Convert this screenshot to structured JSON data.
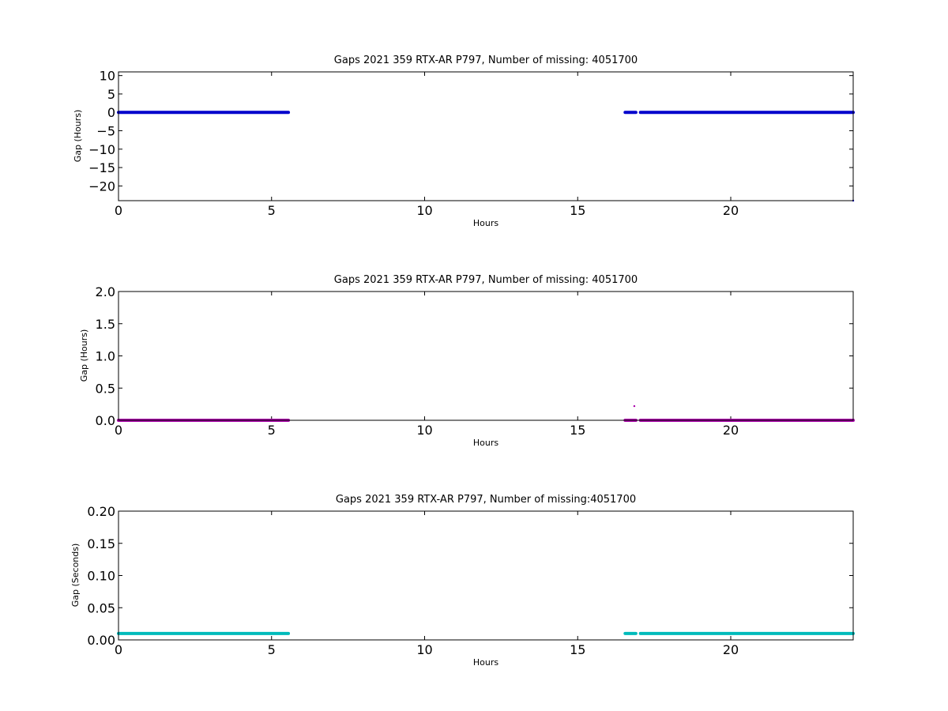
{
  "figure": {
    "background": "#ffffff"
  },
  "chart_data": [
    {
      "type": "scatter",
      "title": "Gaps 2021 359 RTX-AR  P797, Number of missing: 4051700",
      "xlabel": "Hours",
      "ylabel": "Gap (Hours)",
      "xlim": [
        0,
        24
      ],
      "ylim": [
        -24,
        11
      ],
      "xticks": [
        0,
        5,
        10,
        15,
        20
      ],
      "yticks": [
        10,
        5,
        0,
        -5,
        -10,
        -15,
        -20
      ],
      "color": "#0000cc",
      "series": [
        {
          "segments": [
            {
              "x": [
                0.0,
                5.55
              ],
              "y": 0.0
            },
            {
              "x": [
                16.55,
                16.9
              ],
              "y": 0.0
            },
            {
              "x": [
                17.05,
                24.0
              ],
              "y": 0.0
            }
          ],
          "points": [
            {
              "x": 24.0,
              "y": -24.0
            }
          ]
        }
      ]
    },
    {
      "type": "scatter",
      "title": "Gaps 2021 359 RTX-AR  P797, Number of missing: 4051700",
      "xlabel": "Hours",
      "ylabel": "Gap (Hours)",
      "xlim": [
        0,
        24
      ],
      "ylim": [
        0,
        2.0
      ],
      "xticks": [
        0,
        5,
        10,
        15,
        20
      ],
      "yticks": [
        2.0,
        1.5,
        1.0,
        0.5,
        0.0
      ],
      "ytick_labels": [
        "2.0",
        "1.5",
        "1.0",
        "0.5",
        "0.0"
      ],
      "color": "#aa00aa",
      "series": [
        {
          "segments": [
            {
              "x": [
                0.0,
                5.55
              ],
              "y": 0.0
            },
            {
              "x": [
                16.55,
                16.9
              ],
              "y": 0.0
            },
            {
              "x": [
                17.05,
                24.0
              ],
              "y": 0.0
            }
          ],
          "points": [
            {
              "x": 16.85,
              "y": 0.22
            }
          ]
        }
      ]
    },
    {
      "type": "scatter",
      "title": "Gaps 2021 359 RTX-AR  P797, Number of missing:4051700",
      "xlabel": "Hours",
      "ylabel": "Gap (Seconds)",
      "xlim": [
        0,
        24
      ],
      "ylim": [
        0,
        0.2
      ],
      "xticks": [
        0,
        5,
        10,
        15,
        20
      ],
      "yticks": [
        0.2,
        0.15,
        0.1,
        0.05,
        0.0
      ],
      "ytick_labels": [
        "0.20",
        "0.15",
        "0.10",
        "0.05",
        "0.00"
      ],
      "color": "#00bbbb",
      "series": [
        {
          "segments": [
            {
              "x": [
                0.0,
                5.55
              ],
              "y": 0.01
            },
            {
              "x": [
                16.55,
                16.9
              ],
              "y": 0.01
            },
            {
              "x": [
                17.05,
                24.0
              ],
              "y": 0.01
            }
          ],
          "points": []
        }
      ]
    }
  ]
}
